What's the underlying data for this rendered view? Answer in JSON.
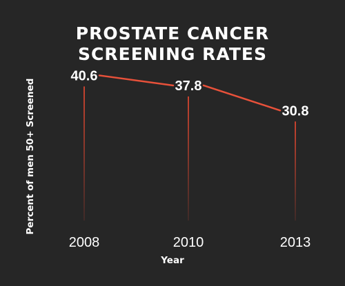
{
  "chart_data": {
    "type": "line",
    "title_lines": [
      "PROSTATE CANCER",
      "SCREENING RATES"
    ],
    "xlabel": "Year",
    "ylabel": "Percent of men 50+ Screened",
    "categories": [
      "2008",
      "2010",
      "2013"
    ],
    "values": [
      40.6,
      37.8,
      30.8
    ],
    "value_labels": [
      "40.6",
      "37.8",
      "30.8"
    ],
    "ylim": [
      0,
      43
    ],
    "grid": false,
    "colors": {
      "background": "#262626",
      "line": "#e8513a",
      "stem": "#c9432f",
      "text": "#ffffff"
    }
  }
}
